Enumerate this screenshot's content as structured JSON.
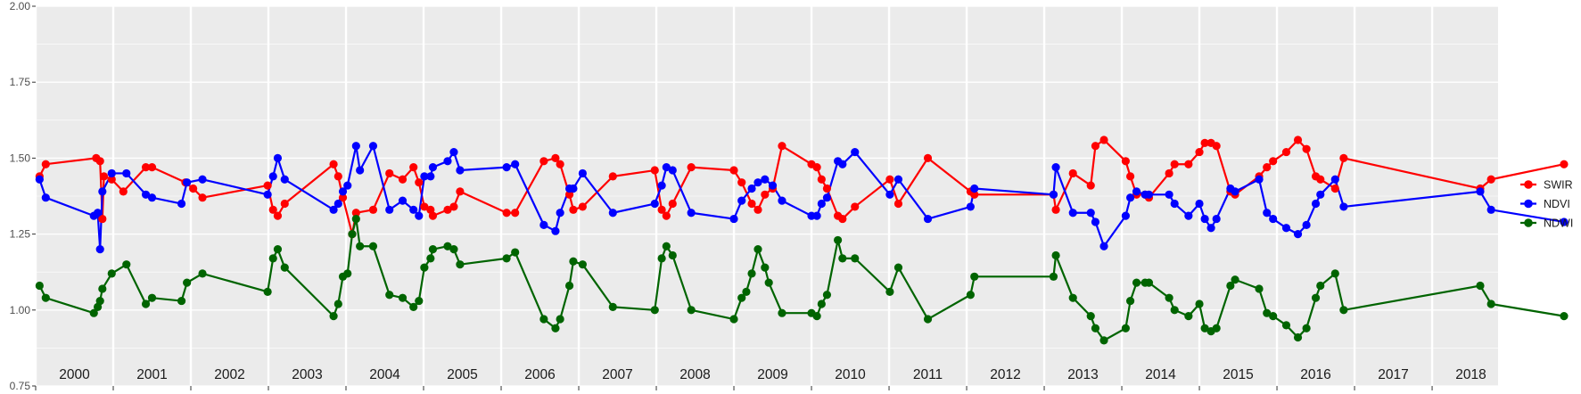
{
  "chart_data": {
    "type": "line",
    "title": "",
    "xlabel": "",
    "ylabel": "",
    "xlim": [
      2000.0,
      2018.85
    ],
    "ylim": [
      0.75,
      2.0
    ],
    "yticks": [
      "0.75",
      "1.00",
      "1.25",
      "1.50",
      "1.75",
      "2.00"
    ],
    "year_labels": [
      "2000",
      "2001",
      "2002",
      "2003",
      "2004",
      "2005",
      "2006",
      "2007",
      "2008",
      "2009",
      "2010",
      "2011",
      "2012",
      "2013",
      "2014",
      "2015",
      "2016",
      "2017",
      "2018"
    ],
    "grid": true,
    "legend_position": "right",
    "series": [
      {
        "name": "SWIR",
        "color": "#ff0000",
        "points": [
          [
            2000.05,
            1.44
          ],
          [
            2000.13,
            1.48
          ],
          [
            2000.78,
            1.5
          ],
          [
            2000.83,
            1.49
          ],
          [
            2000.86,
            1.3
          ],
          [
            2000.88,
            1.44
          ],
          [
            2000.98,
            1.43
          ],
          [
            2001.13,
            1.39
          ],
          [
            2001.42,
            1.47
          ],
          [
            2001.5,
            1.47
          ],
          [
            2001.93,
            1.42
          ],
          [
            2002.03,
            1.4
          ],
          [
            2002.15,
            1.37
          ],
          [
            2002.99,
            1.41
          ],
          [
            2003.06,
            1.33
          ],
          [
            2003.12,
            1.31
          ],
          [
            2003.21,
            1.35
          ],
          [
            2003.84,
            1.48
          ],
          [
            2003.9,
            1.44
          ],
          [
            2003.96,
            1.37
          ],
          [
            2004.08,
            1.25
          ],
          [
            2004.13,
            1.32
          ],
          [
            2004.35,
            1.33
          ],
          [
            2004.56,
            1.45
          ],
          [
            2004.73,
            1.43
          ],
          [
            2004.87,
            1.47
          ],
          [
            2004.94,
            1.42
          ],
          [
            2005.01,
            1.34
          ],
          [
            2005.09,
            1.33
          ],
          [
            2005.12,
            1.31
          ],
          [
            2005.31,
            1.33
          ],
          [
            2005.39,
            1.34
          ],
          [
            2005.47,
            1.39
          ],
          [
            2006.07,
            1.32
          ],
          [
            2006.18,
            1.32
          ],
          [
            2006.55,
            1.49
          ],
          [
            2006.7,
            1.5
          ],
          [
            2006.76,
            1.48
          ],
          [
            2006.88,
            1.38
          ],
          [
            2006.93,
            1.33
          ],
          [
            2007.05,
            1.34
          ],
          [
            2007.44,
            1.44
          ],
          [
            2007.98,
            1.46
          ],
          [
            2008.07,
            1.33
          ],
          [
            2008.13,
            1.31
          ],
          [
            2008.21,
            1.35
          ],
          [
            2008.45,
            1.47
          ],
          [
            2009.0,
            1.46
          ],
          [
            2009.1,
            1.42
          ],
          [
            2009.23,
            1.35
          ],
          [
            2009.31,
            1.33
          ],
          [
            2009.4,
            1.38
          ],
          [
            2009.5,
            1.4
          ],
          [
            2009.62,
            1.54
          ],
          [
            2010.0,
            1.48
          ],
          [
            2010.07,
            1.47
          ],
          [
            2010.13,
            1.43
          ],
          [
            2010.2,
            1.4
          ],
          [
            2010.34,
            1.31
          ],
          [
            2010.4,
            1.3
          ],
          [
            2010.56,
            1.34
          ],
          [
            2011.01,
            1.43
          ],
          [
            2011.12,
            1.35
          ],
          [
            2011.5,
            1.5
          ],
          [
            2012.05,
            1.39
          ],
          [
            2012.1,
            1.38
          ],
          [
            2013.12,
            1.38
          ],
          [
            2013.15,
            1.33
          ],
          [
            2013.37,
            1.45
          ],
          [
            2013.6,
            1.41
          ],
          [
            2013.66,
            1.54
          ],
          [
            2013.77,
            1.56
          ],
          [
            2014.05,
            1.49
          ],
          [
            2014.11,
            1.44
          ],
          [
            2014.19,
            1.38
          ],
          [
            2014.3,
            1.38
          ],
          [
            2014.35,
            1.37
          ],
          [
            2014.61,
            1.45
          ],
          [
            2014.68,
            1.48
          ],
          [
            2014.86,
            1.48
          ],
          [
            2015.0,
            1.52
          ],
          [
            2015.07,
            1.55
          ],
          [
            2015.15,
            1.55
          ],
          [
            2015.22,
            1.54
          ],
          [
            2015.4,
            1.39
          ],
          [
            2015.46,
            1.38
          ],
          [
            2015.77,
            1.44
          ],
          [
            2015.87,
            1.47
          ],
          [
            2015.95,
            1.49
          ],
          [
            2016.12,
            1.52
          ],
          [
            2016.27,
            1.56
          ],
          [
            2016.38,
            1.53
          ],
          [
            2016.5,
            1.44
          ],
          [
            2016.56,
            1.43
          ],
          [
            2016.75,
            1.4
          ],
          [
            2016.86,
            1.5
          ],
          [
            2018.62,
            1.4
          ],
          [
            2018.76,
            1.43
          ],
          [
            2019.7,
            1.48
          ]
        ]
      },
      {
        "name": "NDVI",
        "color": "#0000ff",
        "points": [
          [
            2000.05,
            1.43
          ],
          [
            2000.13,
            1.37
          ],
          [
            2000.75,
            1.31
          ],
          [
            2000.8,
            1.32
          ],
          [
            2000.83,
            1.2
          ],
          [
            2000.86,
            1.39
          ],
          [
            2000.98,
            1.45
          ],
          [
            2001.17,
            1.45
          ],
          [
            2001.42,
            1.38
          ],
          [
            2001.5,
            1.37
          ],
          [
            2001.88,
            1.35
          ],
          [
            2001.95,
            1.42
          ],
          [
            2002.15,
            1.43
          ],
          [
            2002.99,
            1.38
          ],
          [
            2003.06,
            1.44
          ],
          [
            2003.12,
            1.5
          ],
          [
            2003.21,
            1.43
          ],
          [
            2003.84,
            1.33
          ],
          [
            2003.9,
            1.35
          ],
          [
            2003.96,
            1.39
          ],
          [
            2004.02,
            1.41
          ],
          [
            2004.13,
            1.54
          ],
          [
            2004.18,
            1.46
          ],
          [
            2004.35,
            1.54
          ],
          [
            2004.56,
            1.33
          ],
          [
            2004.73,
            1.36
          ],
          [
            2004.87,
            1.33
          ],
          [
            2004.94,
            1.31
          ],
          [
            2005.01,
            1.44
          ],
          [
            2005.09,
            1.44
          ],
          [
            2005.12,
            1.47
          ],
          [
            2005.31,
            1.49
          ],
          [
            2005.39,
            1.52
          ],
          [
            2005.47,
            1.46
          ],
          [
            2006.07,
            1.47
          ],
          [
            2006.18,
            1.48
          ],
          [
            2006.55,
            1.28
          ],
          [
            2006.7,
            1.26
          ],
          [
            2006.76,
            1.32
          ],
          [
            2006.88,
            1.4
          ],
          [
            2006.93,
            1.4
          ],
          [
            2007.05,
            1.45
          ],
          [
            2007.44,
            1.32
          ],
          [
            2007.98,
            1.35
          ],
          [
            2008.07,
            1.41
          ],
          [
            2008.13,
            1.47
          ],
          [
            2008.21,
            1.46
          ],
          [
            2008.45,
            1.32
          ],
          [
            2009.0,
            1.3
          ],
          [
            2009.1,
            1.36
          ],
          [
            2009.23,
            1.4
          ],
          [
            2009.31,
            1.42
          ],
          [
            2009.4,
            1.43
          ],
          [
            2009.5,
            1.41
          ],
          [
            2009.62,
            1.36
          ],
          [
            2010.0,
            1.31
          ],
          [
            2010.07,
            1.31
          ],
          [
            2010.13,
            1.35
          ],
          [
            2010.2,
            1.37
          ],
          [
            2010.34,
            1.49
          ],
          [
            2010.4,
            1.48
          ],
          [
            2010.56,
            1.52
          ],
          [
            2011.01,
            1.38
          ],
          [
            2011.12,
            1.43
          ],
          [
            2011.5,
            1.3
          ],
          [
            2012.05,
            1.34
          ],
          [
            2012.1,
            1.4
          ],
          [
            2013.12,
            1.38
          ],
          [
            2013.15,
            1.47
          ],
          [
            2013.37,
            1.32
          ],
          [
            2013.6,
            1.32
          ],
          [
            2013.66,
            1.29
          ],
          [
            2013.77,
            1.21
          ],
          [
            2014.05,
            1.31
          ],
          [
            2014.11,
            1.37
          ],
          [
            2014.19,
            1.39
          ],
          [
            2014.3,
            1.38
          ],
          [
            2014.35,
            1.38
          ],
          [
            2014.61,
            1.38
          ],
          [
            2014.68,
            1.35
          ],
          [
            2014.86,
            1.31
          ],
          [
            2015.0,
            1.35
          ],
          [
            2015.07,
            1.3
          ],
          [
            2015.15,
            1.27
          ],
          [
            2015.22,
            1.3
          ],
          [
            2015.4,
            1.4
          ],
          [
            2015.46,
            1.39
          ],
          [
            2015.77,
            1.43
          ],
          [
            2015.87,
            1.32
          ],
          [
            2015.95,
            1.3
          ],
          [
            2016.12,
            1.27
          ],
          [
            2016.27,
            1.25
          ],
          [
            2016.38,
            1.28
          ],
          [
            2016.5,
            1.35
          ],
          [
            2016.56,
            1.38
          ],
          [
            2016.75,
            1.43
          ],
          [
            2016.86,
            1.34
          ],
          [
            2018.62,
            1.39
          ],
          [
            2018.76,
            1.33
          ],
          [
            2019.7,
            1.29
          ]
        ]
      },
      {
        "name": "NDWI",
        "color": "#006400",
        "points": [
          [
            2000.05,
            1.08
          ],
          [
            2000.13,
            1.04
          ],
          [
            2000.75,
            0.99
          ],
          [
            2000.8,
            1.01
          ],
          [
            2000.83,
            1.03
          ],
          [
            2000.86,
            1.07
          ],
          [
            2000.98,
            1.12
          ],
          [
            2001.17,
            1.15
          ],
          [
            2001.42,
            1.02
          ],
          [
            2001.5,
            1.04
          ],
          [
            2001.88,
            1.03
          ],
          [
            2001.95,
            1.09
          ],
          [
            2002.15,
            1.12
          ],
          [
            2002.99,
            1.06
          ],
          [
            2003.06,
            1.17
          ],
          [
            2003.12,
            1.2
          ],
          [
            2003.21,
            1.14
          ],
          [
            2003.84,
            0.98
          ],
          [
            2003.9,
            1.02
          ],
          [
            2003.96,
            1.11
          ],
          [
            2004.02,
            1.12
          ],
          [
            2004.08,
            1.25
          ],
          [
            2004.13,
            1.3
          ],
          [
            2004.18,
            1.21
          ],
          [
            2004.35,
            1.21
          ],
          [
            2004.56,
            1.05
          ],
          [
            2004.73,
            1.04
          ],
          [
            2004.87,
            1.01
          ],
          [
            2004.94,
            1.03
          ],
          [
            2005.01,
            1.14
          ],
          [
            2005.09,
            1.17
          ],
          [
            2005.12,
            1.2
          ],
          [
            2005.31,
            1.21
          ],
          [
            2005.39,
            1.2
          ],
          [
            2005.47,
            1.15
          ],
          [
            2006.07,
            1.17
          ],
          [
            2006.18,
            1.19
          ],
          [
            2006.55,
            0.97
          ],
          [
            2006.7,
            0.94
          ],
          [
            2006.76,
            0.97
          ],
          [
            2006.88,
            1.08
          ],
          [
            2006.93,
            1.16
          ],
          [
            2007.05,
            1.15
          ],
          [
            2007.44,
            1.01
          ],
          [
            2007.98,
            1.0
          ],
          [
            2008.07,
            1.17
          ],
          [
            2008.13,
            1.21
          ],
          [
            2008.21,
            1.18
          ],
          [
            2008.45,
            1.0
          ],
          [
            2009.0,
            0.97
          ],
          [
            2009.1,
            1.04
          ],
          [
            2009.16,
            1.06
          ],
          [
            2009.23,
            1.12
          ],
          [
            2009.31,
            1.2
          ],
          [
            2009.4,
            1.14
          ],
          [
            2009.45,
            1.09
          ],
          [
            2009.62,
            0.99
          ],
          [
            2010.0,
            0.99
          ],
          [
            2010.07,
            0.98
          ],
          [
            2010.13,
            1.02
          ],
          [
            2010.2,
            1.05
          ],
          [
            2010.34,
            1.23
          ],
          [
            2010.4,
            1.17
          ],
          [
            2010.56,
            1.17
          ],
          [
            2011.01,
            1.06
          ],
          [
            2011.12,
            1.14
          ],
          [
            2011.5,
            0.97
          ],
          [
            2012.05,
            1.05
          ],
          [
            2012.1,
            1.11
          ],
          [
            2013.12,
            1.11
          ],
          [
            2013.15,
            1.18
          ],
          [
            2013.37,
            1.04
          ],
          [
            2013.6,
            0.98
          ],
          [
            2013.66,
            0.94
          ],
          [
            2013.77,
            0.9
          ],
          [
            2014.05,
            0.94
          ],
          [
            2014.11,
            1.03
          ],
          [
            2014.19,
            1.09
          ],
          [
            2014.3,
            1.09
          ],
          [
            2014.35,
            1.09
          ],
          [
            2014.61,
            1.04
          ],
          [
            2014.68,
            1.0
          ],
          [
            2014.86,
            0.98
          ],
          [
            2015.0,
            1.02
          ],
          [
            2015.07,
            0.94
          ],
          [
            2015.15,
            0.93
          ],
          [
            2015.22,
            0.94
          ],
          [
            2015.4,
            1.08
          ],
          [
            2015.46,
            1.1
          ],
          [
            2015.77,
            1.07
          ],
          [
            2015.87,
            0.99
          ],
          [
            2015.95,
            0.98
          ],
          [
            2016.12,
            0.95
          ],
          [
            2016.27,
            0.91
          ],
          [
            2016.38,
            0.94
          ],
          [
            2016.5,
            1.04
          ],
          [
            2016.56,
            1.08
          ],
          [
            2016.75,
            1.12
          ],
          [
            2016.86,
            1.0
          ],
          [
            2018.62,
            1.08
          ],
          [
            2018.76,
            1.02
          ],
          [
            2019.7,
            0.98
          ]
        ]
      }
    ]
  }
}
